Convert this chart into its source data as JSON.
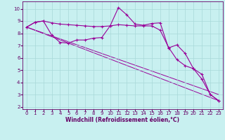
{
  "xlabel": "Windchill (Refroidissement éolien,°C)",
  "bg_color": "#c8f0f0",
  "line_color": "#990099",
  "grid_color": "#a8d8d8",
  "tick_color": "#660066",
  "xlim": [
    -0.5,
    23.5
  ],
  "ylim": [
    1.8,
    10.6
  ],
  "xticks": [
    0,
    1,
    2,
    3,
    4,
    5,
    6,
    7,
    8,
    9,
    10,
    11,
    12,
    13,
    14,
    15,
    16,
    17,
    18,
    19,
    20,
    21,
    22,
    23
  ],
  "yticks": [
    2,
    3,
    4,
    5,
    6,
    7,
    8,
    9,
    10
  ],
  "line1_x": [
    0,
    1,
    2,
    3,
    4,
    5,
    6,
    7,
    8,
    9,
    10,
    11,
    12,
    13,
    14,
    15,
    16,
    17,
    18,
    19,
    20,
    21,
    22,
    23
  ],
  "line1_y": [
    8.5,
    8.9,
    9.0,
    8.85,
    8.75,
    8.7,
    8.65,
    8.6,
    8.55,
    8.55,
    8.6,
    8.7,
    8.65,
    8.6,
    8.6,
    8.6,
    8.25,
    6.85,
    5.85,
    5.35,
    5.1,
    4.65,
    3.0,
    2.5
  ],
  "line2_x": [
    0,
    1,
    2,
    3,
    4,
    5,
    6,
    7,
    8,
    9,
    10,
    11,
    12,
    13,
    14,
    15,
    16,
    17,
    18,
    19,
    20,
    21,
    22,
    23
  ],
  "line2_y": [
    8.5,
    8.9,
    9.0,
    7.85,
    7.25,
    7.2,
    7.45,
    7.45,
    7.6,
    7.65,
    8.6,
    10.1,
    9.5,
    8.75,
    8.65,
    8.8,
    8.85,
    6.8,
    7.05,
    6.35,
    5.1,
    4.25,
    3.0,
    2.5
  ],
  "line3_x": [
    0,
    23
  ],
  "line3_y": [
    8.5,
    2.5
  ],
  "line4_x": [
    0,
    23
  ],
  "line4_y": [
    8.5,
    3.0
  ],
  "xlabel_fontsize": 5.5,
  "tick_fontsize": 5
}
